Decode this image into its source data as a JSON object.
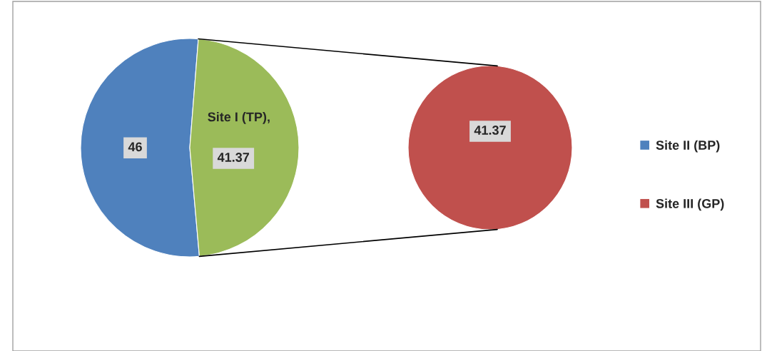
{
  "chart_data": [
    {
      "type": "pie",
      "categories": [
        "Site II (BP)",
        null
      ],
      "values": [
        46,
        41.37
      ],
      "colors": [
        "#4f81bd",
        "#9bbb59"
      ],
      "data_labels": true,
      "annotations": [
        "Site I (TP),"
      ],
      "legend": "right"
    },
    {
      "type": "pie",
      "categories": [
        "Site III (GP)"
      ],
      "values": [
        41.37
      ],
      "colors": [
        "#c0504d"
      ],
      "data_labels": true,
      "legend": "right"
    }
  ]
}
